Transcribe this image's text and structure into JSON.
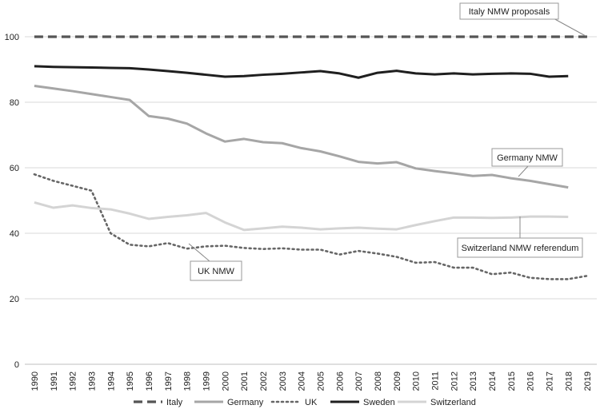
{
  "chart_data": {
    "type": "line",
    "x": [
      1990,
      1991,
      1992,
      1993,
      1994,
      1995,
      1996,
      1997,
      1998,
      1999,
      2000,
      2001,
      2002,
      2003,
      2004,
      2005,
      2006,
      2007,
      2008,
      2009,
      2010,
      2011,
      2012,
      2013,
      2014,
      2015,
      2016,
      2017,
      2018,
      2019
    ],
    "ylim": [
      0,
      100
    ],
    "yticks": [
      0,
      20,
      40,
      60,
      80,
      100
    ],
    "grid": true,
    "legend_position": "bottom",
    "series": [
      {
        "name": "Italy",
        "style": "dashed",
        "color": "#555555",
        "values": [
          100,
          100,
          100,
          100,
          100,
          100,
          100,
          100,
          100,
          100,
          100,
          100,
          100,
          100,
          100,
          100,
          100,
          100,
          100,
          100,
          100,
          100,
          100,
          100,
          100,
          100,
          100,
          100,
          100,
          100
        ]
      },
      {
        "name": "Germany",
        "style": "solid",
        "color": "#a6a6a6",
        "values": [
          85,
          84.2,
          83.4,
          82.5,
          81.6,
          80.7,
          75.8,
          75,
          73.5,
          70.5,
          68,
          68.8,
          67.8,
          67.5,
          66,
          65,
          63.5,
          61.8,
          61.3,
          61.7,
          59.8,
          59,
          58.3,
          57.5,
          57.8,
          56.8,
          56,
          55,
          54,
          null
        ]
      },
      {
        "name": "UK",
        "style": "dotted",
        "color": "#666666",
        "values": [
          58,
          56,
          54.5,
          53,
          40,
          36.5,
          36,
          37,
          35.3,
          36,
          36.2,
          35.5,
          35.2,
          35.4,
          35,
          35,
          33.5,
          34.6,
          33.8,
          32.8,
          31,
          31.2,
          29.5,
          29.5,
          27.5,
          28,
          26.4,
          26,
          26,
          27
        ]
      },
      {
        "name": "Sweden",
        "style": "solid",
        "color": "#1f1f1f",
        "values": [
          91,
          90.8,
          90.7,
          90.6,
          90.5,
          90.4,
          90,
          89.5,
          89,
          88.4,
          87.8,
          88,
          88.4,
          88.7,
          89.1,
          89.5,
          88.8,
          87.5,
          89,
          89.6,
          88.8,
          88.5,
          88.8,
          88.5,
          88.7,
          88.8,
          88.7,
          87.8,
          88,
          null
        ]
      },
      {
        "name": "Switzerland",
        "style": "solid",
        "color": "#d4d4d4",
        "values": [
          49.4,
          47.8,
          48.5,
          47.7,
          47.3,
          46,
          44.4,
          45,
          45.5,
          46.2,
          43.3,
          41,
          41.5,
          42,
          41.7,
          41.2,
          41.5,
          41.7,
          41.4,
          41.2,
          42.5,
          43.7,
          44.8,
          44.8,
          44.7,
          44.8,
          45.1,
          45.1,
          45,
          null
        ]
      }
    ],
    "annotations": [
      {
        "text": "Italy NMW proposals"
      },
      {
        "text": "Germany NMW"
      },
      {
        "text": "UK NMW"
      },
      {
        "text": "Switzerland NMW referendum"
      }
    ]
  }
}
